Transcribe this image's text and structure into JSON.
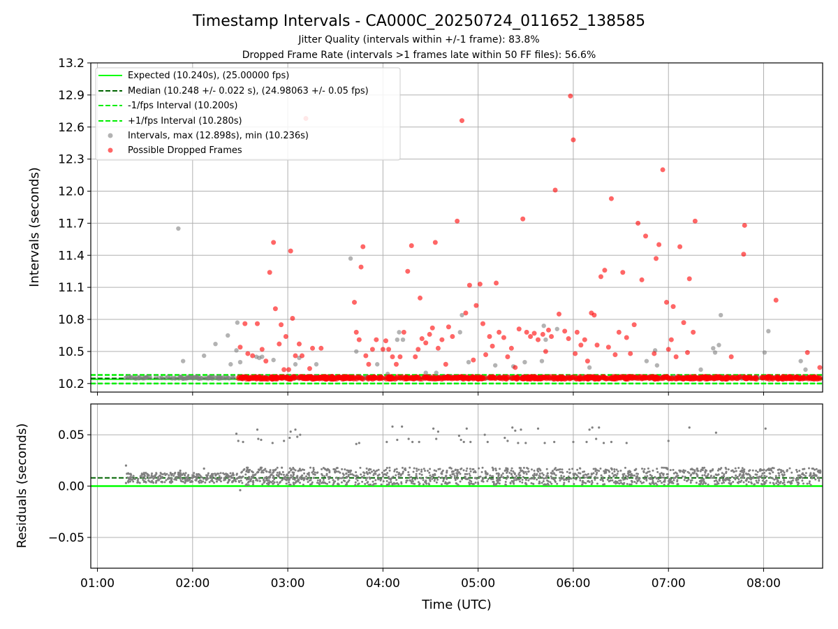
{
  "chart_data": [
    {
      "type": "scatter",
      "title": "Timestamp Intervals - CA000C_20250724_011652_138585",
      "subtitle1": "Jitter Quality (intervals within +/-1 frame): 83.8%",
      "subtitle2": "Dropped Frame Rate (intervals >1 frames late within 50 FF files): 56.6%",
      "xlabel": "",
      "ylabel": "Intervals (seconds)",
      "ylim": [
        10.12,
        13.2
      ],
      "xlim": [
        0.93,
        8.62
      ],
      "yticks": [
        10.2,
        10.5,
        10.8,
        11.1,
        11.4,
        11.7,
        12.0,
        12.3,
        12.6,
        12.9,
        13.2
      ],
      "ytick_labels": [
        "10.2",
        "10.5",
        "10.8",
        "11.1",
        "11.4",
        "11.7",
        "12.0",
        "12.3",
        "12.6",
        "12.9",
        "13.2"
      ],
      "grid": true,
      "legend_position": "upper-left",
      "legend": [
        "Expected (10.240s), (25.00000 fps)",
        "Median (10.248 +/- 0.022 s), (24.98063 +/- 0.05 fps)",
        "-1/fps Interval (10.200s)",
        "+1/fps Interval (10.280s)",
        "Intervals, max (12.898s), min (10.236s)",
        "Possible Dropped Frames"
      ],
      "reference_lines": {
        "expected": 10.24,
        "median": 10.248,
        "minus_one_fps": 10.2,
        "plus_one_fps": 10.28
      },
      "series": [
        {
          "name": "Intervals, max (12.898s), min (10.236s)",
          "color": "#808080",
          "x": [
            1.85,
            1.9,
            2.12,
            2.24,
            2.37,
            2.4,
            2.46,
            2.47,
            2.5,
            2.67,
            2.7,
            2.73,
            2.85,
            3.08,
            3.12,
            3.3,
            3.66,
            3.72,
            3.94,
            4.05,
            4.15,
            4.17,
            4.21,
            4.45,
            4.56,
            4.81,
            4.83,
            4.9,
            5.18,
            5.37,
            5.49,
            5.67,
            5.69,
            5.71,
            5.83,
            6.17,
            6.77,
            6.86,
            6.88,
            7.34,
            7.47,
            7.49,
            7.53,
            7.55,
            8.01,
            8.05,
            8.39,
            8.44
          ],
          "y": [
            11.65,
            10.41,
            10.46,
            10.57,
            10.65,
            10.38,
            10.51,
            10.77,
            10.4,
            10.45,
            10.44,
            10.45,
            10.42,
            10.38,
            10.44,
            10.38,
            11.37,
            10.5,
            10.38,
            10.29,
            10.61,
            10.68,
            10.61,
            10.3,
            10.3,
            10.68,
            10.84,
            10.4,
            10.37,
            10.36,
            10.4,
            10.41,
            10.74,
            10.61,
            10.71,
            10.35,
            10.41,
            10.51,
            10.37,
            10.33,
            10.53,
            10.49,
            10.56,
            10.84,
            10.49,
            10.69,
            10.41,
            10.33
          ]
        },
        {
          "name": "Possible Dropped Frames",
          "color": "#ff0000",
          "x": [
            2.5,
            2.55,
            2.58,
            2.63,
            2.68,
            2.73,
            2.77,
            2.81,
            2.85,
            2.87,
            2.91,
            2.93,
            2.96,
            2.98,
            3.01,
            3.03,
            3.05,
            3.08,
            3.12,
            3.15,
            3.19,
            3.23,
            3.26,
            3.35,
            3.7,
            3.72,
            3.75,
            3.77,
            3.79,
            3.82,
            3.85,
            3.89,
            3.93,
            4.0,
            4.03,
            4.06,
            4.1,
            4.14,
            4.18,
            4.22,
            4.26,
            4.3,
            4.34,
            4.37,
            4.39,
            4.41,
            4.45,
            4.49,
            4.52,
            4.55,
            4.58,
            4.62,
            4.66,
            4.69,
            4.73,
            4.78,
            4.83,
            4.87,
            4.91,
            4.95,
            4.98,
            5.02,
            5.05,
            5.08,
            5.12,
            5.15,
            5.19,
            5.22,
            5.27,
            5.31,
            5.35,
            5.39,
            5.43,
            5.47,
            5.51,
            5.55,
            5.59,
            5.63,
            5.68,
            5.71,
            5.74,
            5.77,
            5.81,
            5.85,
            5.91,
            5.95,
            5.97,
            6.0,
            6.02,
            6.04,
            6.08,
            6.12,
            6.15,
            6.19,
            6.22,
            6.25,
            6.29,
            6.33,
            6.37,
            6.4,
            6.44,
            6.48,
            6.52,
            6.56,
            6.6,
            6.64,
            6.68,
            6.72,
            6.76,
            6.85,
            6.87,
            6.9,
            6.94,
            6.98,
            7.0,
            7.03,
            7.05,
            7.08,
            7.12,
            7.16,
            7.2,
            7.22,
            7.26,
            7.28,
            7.66,
            7.79,
            7.8,
            8.13,
            8.46,
            8.59
          ],
          "y": [
            10.54,
            10.76,
            10.48,
            10.46,
            10.76,
            10.52,
            10.41,
            11.24,
            11.52,
            10.9,
            10.57,
            10.75,
            10.33,
            10.64,
            10.33,
            11.44,
            10.81,
            10.46,
            10.57,
            10.46,
            12.68,
            10.34,
            10.53,
            10.53,
            10.96,
            10.68,
            10.61,
            11.29,
            11.48,
            10.46,
            10.38,
            10.52,
            10.61,
            10.52,
            10.6,
            10.52,
            10.45,
            10.38,
            10.45,
            10.68,
            11.25,
            11.49,
            10.45,
            10.52,
            11.0,
            10.62,
            10.58,
            10.66,
            10.72,
            11.52,
            10.53,
            10.61,
            10.38,
            10.73,
            10.64,
            11.72,
            12.66,
            10.86,
            11.12,
            10.42,
            10.93,
            11.13,
            10.76,
            10.47,
            10.64,
            10.55,
            11.14,
            10.68,
            10.63,
            10.45,
            10.53,
            10.35,
            10.71,
            11.74,
            10.68,
            10.64,
            10.67,
            10.61,
            10.66,
            10.5,
            10.7,
            10.64,
            12.01,
            10.85,
            10.69,
            10.62,
            12.89,
            12.48,
            10.48,
            10.68,
            10.56,
            10.61,
            10.41,
            10.86,
            10.84,
            10.56,
            11.2,
            11.26,
            10.54,
            11.93,
            10.47,
            10.68,
            11.24,
            10.63,
            10.48,
            10.75,
            11.7,
            11.17,
            11.58,
            10.48,
            11.37,
            11.5,
            12.2,
            10.96,
            10.52,
            10.61,
            10.92,
            10.45,
            11.48,
            10.77,
            10.49,
            11.18,
            10.68,
            11.72,
            10.45,
            11.41,
            11.68,
            10.98,
            10.49,
            10.35
          ]
        }
      ]
    },
    {
      "type": "scatter",
      "xlabel": "Time (UTC)",
      "ylabel": "Residuals (seconds)",
      "ylim": [
        -0.08,
        0.08
      ],
      "xlim": [
        0.93,
        8.62
      ],
      "yticks": [
        -0.05,
        0.0,
        0.05
      ],
      "ytick_labels": [
        "−0.05",
        "0.00",
        "0.05"
      ],
      "xticks": [
        1,
        2,
        3,
        4,
        5,
        6,
        7,
        8
      ],
      "xtick_labels": [
        "01:00",
        "02:00",
        "03:00",
        "04:00",
        "05:00",
        "06:00",
        "07:00",
        "08:00"
      ],
      "grid": true,
      "reference_lines": {
        "zero": 0.0,
        "median": 0.008
      },
      "series": [
        {
          "color": "#808080",
          "x": [
            1.3,
            1.3,
            1.31,
            1.85,
            1.87,
            1.89,
            2.12,
            2.26,
            2.37,
            2.46,
            2.48,
            2.5,
            2.53,
            2.68,
            2.69,
            2.72,
            2.84,
            2.96,
            3.02,
            3.03,
            3.08,
            3.1,
            3.13,
            3.72,
            3.75,
            4.04,
            4.1,
            4.15,
            4.2,
            4.27,
            4.31,
            4.38,
            4.53,
            4.56,
            4.58,
            4.8,
            4.82,
            4.85,
            4.88,
            4.92,
            5.07,
            5.1,
            5.28,
            5.31,
            5.36,
            5.39,
            5.42,
            5.45,
            5.5,
            5.63,
            5.7,
            5.8,
            6.0,
            6.14,
            6.17,
            6.2,
            6.24,
            6.27,
            6.32,
            6.4,
            6.56,
            7.0,
            7.22,
            7.5,
            8.02
          ],
          "y": [
            0.02,
            0.003,
            0.012,
            0.013,
            0.015,
            0.011,
            0.017,
            0.012,
            0.009,
            0.051,
            0.044,
            -0.004,
            0.043,
            0.055,
            0.046,
            0.045,
            0.042,
            0.044,
            0.047,
            0.053,
            0.055,
            0.048,
            0.05,
            0.041,
            0.042,
            0.043,
            0.058,
            0.045,
            0.058,
            0.046,
            0.043,
            0.043,
            0.056,
            0.046,
            0.053,
            0.049,
            0.045,
            0.043,
            0.056,
            0.043,
            0.05,
            0.043,
            0.047,
            0.044,
            0.057,
            0.054,
            0.042,
            0.055,
            0.042,
            0.056,
            0.042,
            0.043,
            0.043,
            0.043,
            0.055,
            0.057,
            0.046,
            0.057,
            0.042,
            0.043,
            0.042,
            0.044,
            0.057,
            0.052,
            0.056
          ]
        }
      ]
    }
  ]
}
